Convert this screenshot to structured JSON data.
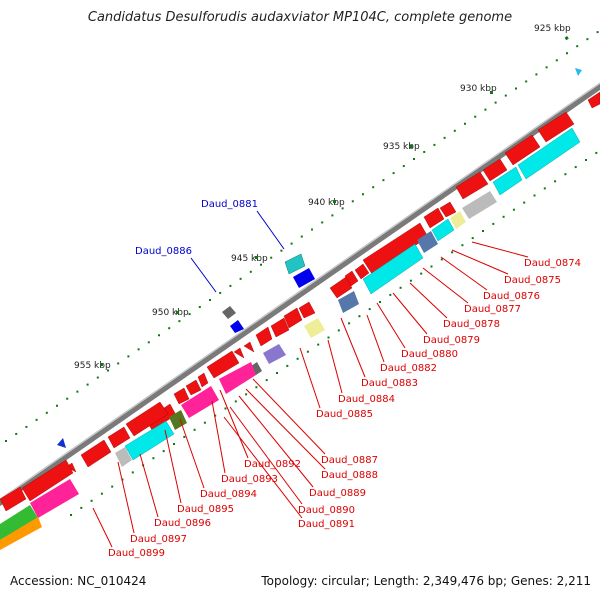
{
  "title": "Candidatus Desulforudis audaxviator MP104C, complete genome",
  "footer": {
    "accession": "Accession: NC_010424",
    "topology": "Topology: circular; Length: 2,349,476 bp; Genes: 2,211"
  },
  "ticks": [
    "925 kbp",
    "930 kbp",
    "935 kbp",
    "940 kbp",
    "945 kbp",
    "950 kbp",
    "955 kbp"
  ],
  "forward_labels": [
    "Daud_0881",
    "Daud_0886"
  ],
  "reverse_labels": [
    "Daud_0874",
    "Daud_0875",
    "Daud_0876",
    "Daud_0877",
    "Daud_0878",
    "Daud_0879",
    "Daud_0880",
    "Daud_0882",
    "Daud_0883",
    "Daud_0884",
    "Daud_0885",
    "Daud_0887",
    "Daud_0888",
    "Daud_0889",
    "Daud_0890",
    "Daud_0891",
    "Daud_0892",
    "Daud_0893",
    "Daud_0894",
    "Daud_0895",
    "Daud_0896",
    "Daud_0897",
    "Daud_0899"
  ],
  "colors": {
    "backbone": "#7a7a7a",
    "cds": "#ee1111",
    "rna": "#00e5e5",
    "forward_label": "#0000cc",
    "reverse_label": "#dd0000",
    "gc_dot": "#117711"
  }
}
